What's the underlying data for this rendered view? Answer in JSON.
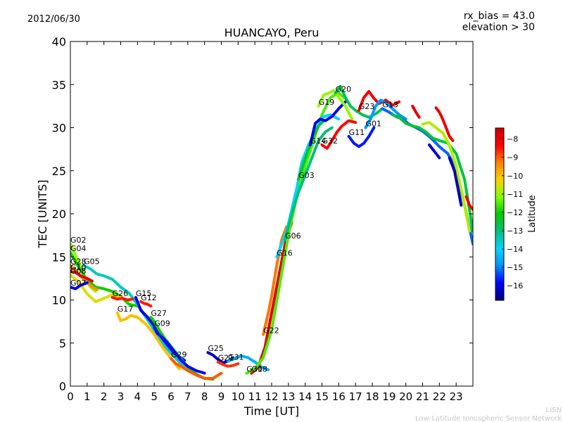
{
  "header": {
    "date": "2012/06/30",
    "bias_line": "rx_bias = 43.0",
    "elev_line": "elevation > 30"
  },
  "footer": {
    "org_short": "LISN",
    "org_long": "Low-Latitude Ionospheric Sensor Network"
  },
  "colorbar": {
    "label": "Latitude",
    "range": [
      -16.8,
      -7.4
    ],
    "ticks": [
      -8,
      -9,
      -10,
      -11,
      -12,
      -13,
      -14,
      -15,
      -16
    ],
    "colors": [
      "#00007f",
      "#0000ff",
      "#0090ff",
      "#00d4ff",
      "#00c080",
      "#00c800",
      "#7fff00",
      "#ffd000",
      "#ff8000",
      "#ff0000",
      "#c80000"
    ]
  },
  "chart_data": {
    "type": "line",
    "title": "HUANCAYO, Peru",
    "xlabel": "Time [UT]",
    "ylabel": "TEC [UNITS]",
    "xlim": [
      0,
      24
    ],
    "ylim": [
      0,
      40
    ],
    "xticks": [
      0,
      1,
      2,
      3,
      4,
      5,
      6,
      7,
      8,
      9,
      10,
      11,
      12,
      13,
      14,
      15,
      16,
      17,
      18,
      19,
      20,
      21,
      22,
      23
    ],
    "yticks": [
      0,
      5,
      10,
      15,
      20,
      25,
      30,
      35,
      40
    ],
    "grid": false,
    "series": [
      {
        "name": "G02",
        "lat": -11.0,
        "x": [
          0,
          0.3,
          0.6,
          0.9,
          1.2,
          1.5
        ],
        "y": [
          16.5,
          15.2,
          14.0,
          12.5,
          11.5,
          11.0
        ]
      },
      {
        "name": "G04",
        "lat": -12.0,
        "x": [
          0,
          0.5,
          1.0,
          1.5,
          2.0,
          2.5,
          3.0,
          3.5,
          4.0
        ],
        "y": [
          15.5,
          13.8,
          12.3,
          11.5,
          11.3,
          11.0,
          10.4,
          9.5,
          9.3
        ]
      },
      {
        "name": "G28",
        "lat": -9.5,
        "x": [
          0,
          0.3,
          0.6,
          1.0,
          1.3,
          1.6
        ],
        "y": [
          14.0,
          13.5,
          12.8,
          12.0,
          11.5,
          11.2
        ]
      },
      {
        "name": "G05",
        "lat": -13.5,
        "x": [
          0.8,
          1.2,
          1.6,
          2.0,
          2.5,
          3.0,
          3.5,
          4.0,
          4.5,
          5.0,
          5.5,
          6.0,
          6.5,
          7.0
        ],
        "y": [
          14.0,
          13.6,
          13.0,
          12.8,
          12.4,
          11.5,
          10.8,
          9.5,
          8.0,
          6.5,
          5.0,
          3.8,
          2.8,
          2.2
        ]
      },
      {
        "name": "G10",
        "lat": -8.0,
        "x": [
          0,
          0.3,
          0.6,
          1.0,
          1.3
        ],
        "y": [
          13.3,
          13.2,
          12.8,
          12.5,
          12.2
        ]
      },
      {
        "name": "G08",
        "lat": -10.5,
        "x": [
          0,
          0.5,
          1.0,
          1.5,
          2.0,
          2.5,
          3.0,
          3.5
        ],
        "y": [
          12.9,
          12.1,
          10.7,
          9.8,
          10.2,
          10.6,
          10.3,
          9.9
        ]
      },
      {
        "name": "G07",
        "lat": -16.0,
        "x": [
          0,
          0.3,
          0.6,
          1.0
        ],
        "y": [
          11.5,
          11.3,
          11.7,
          12.0
        ]
      },
      {
        "name": "G26",
        "lat": -8.5,
        "x": [
          2.5,
          2.8,
          3.1,
          3.4,
          3.7
        ],
        "y": [
          10.3,
          10.1,
          10.2,
          10.0,
          10.1
        ]
      },
      {
        "name": "G17",
        "lat": -10.0,
        "x": [
          2.8,
          3.0,
          3.3,
          3.6,
          4.0,
          4.5,
          5.0,
          5.5,
          6.0,
          6.5
        ],
        "y": [
          8.5,
          7.6,
          7.8,
          8.2,
          8.0,
          7.2,
          6.0,
          4.5,
          3.2,
          2.0
        ]
      },
      {
        "name": "G15",
        "lat": -16.0,
        "x": [
          3.9,
          4.2,
          4.6,
          5.0,
          5.3,
          5.7,
          6.2,
          6.8
        ],
        "y": [
          10.3,
          8.8,
          8.0,
          7.0,
          6.0,
          5.0,
          3.8,
          3.0
        ]
      },
      {
        "name": "G12",
        "lat": -8.5,
        "x": [
          4.2,
          4.4,
          4.6,
          4.8
        ],
        "y": [
          9.8,
          9.6,
          9.5,
          9.3
        ]
      },
      {
        "name": "G27",
        "lat": -12.0,
        "x": [
          4.8,
          5.0,
          5.3,
          5.6,
          6.0,
          6.5,
          7.0,
          7.5,
          8.0,
          8.5
        ],
        "y": [
          8.0,
          7.5,
          6.5,
          5.6,
          4.6,
          3.4,
          2.2,
          1.4,
          0.9,
          0.8
        ]
      },
      {
        "name": "G09",
        "lat": -15.8,
        "x": [
          5.0,
          5.2,
          5.4,
          5.8,
          6.2,
          6.6,
          7.0,
          7.5,
          8.0
        ],
        "y": [
          6.8,
          6.1,
          5.8,
          5.0,
          4.0,
          3.0,
          2.3,
          1.8,
          1.5
        ]
      },
      {
        "name": "G29",
        "lat": -9.0,
        "x": [
          6.0,
          6.3,
          6.6,
          7.0,
          7.5,
          8.0,
          8.5,
          9.0
        ],
        "y": [
          3.2,
          2.6,
          2.3,
          1.8,
          1.3,
          0.9,
          0.9,
          1.5
        ]
      },
      {
        "name": "G25",
        "lat": -16.3,
        "x": [
          8.2,
          8.5,
          8.8,
          9.1,
          9.4,
          9.7
        ],
        "y": [
          3.9,
          3.6,
          3.1,
          2.7,
          2.9,
          3.3
        ]
      },
      {
        "name": "G21",
        "lat": -8.7,
        "x": [
          8.8,
          9.1,
          9.4,
          9.7,
          10.0
        ],
        "y": [
          2.8,
          2.5,
          2.3,
          2.4,
          2.6
        ]
      },
      {
        "name": "G31",
        "lat": -14.5,
        "x": [
          9.4,
          9.8,
          10.2,
          10.6,
          11.0,
          11.4,
          11.8
        ],
        "y": [
          2.9,
          3.2,
          3.5,
          3.3,
          2.8,
          2.2,
          1.9
        ]
      },
      {
        "name": "G18",
        "lat": -7.8,
        "x": [
          10.8,
          11.2,
          11.6,
          12.0,
          12.4,
          12.8,
          13.2
        ],
        "y": [
          1.5,
          2.2,
          4.5,
          8.5,
          12.5,
          16.5,
          19.0
        ]
      },
      {
        "name": "G30",
        "lat": -11.5,
        "x": [
          10.5,
          11.0,
          11.5,
          12.0,
          12.5,
          13.0,
          13.5,
          14.0,
          14.5,
          15.0,
          15.5,
          16.0,
          16.5
        ],
        "y": [
          1.5,
          2.0,
          3.3,
          6.5,
          12.0,
          17.5,
          22.0,
          25.5,
          28.5,
          31.5,
          33.5,
          34.0,
          33.2
        ]
      },
      {
        "name": "G22",
        "lat": -9.2,
        "x": [
          11.5,
          11.8,
          12.0,
          12.3,
          12.6,
          12.9
        ],
        "y": [
          6.0,
          8.5,
          10.5,
          14.0,
          17.0,
          18.5
        ]
      },
      {
        "name": "G16",
        "lat": -14.0,
        "x": [
          12.3,
          12.6,
          12.9,
          13.2,
          13.5,
          13.8,
          14.2,
          14.6,
          15.0,
          15.5,
          16.0
        ],
        "y": [
          15.0,
          16.5,
          18.0,
          20.5,
          23.0,
          26.0,
          28.0,
          29.5,
          31.2,
          31.5,
          31.0
        ]
      },
      {
        "name": "G06",
        "lat": -13.0,
        "x": [
          12.8,
          13.2,
          13.6,
          14.0,
          14.4,
          14.8,
          15.2,
          15.6
        ],
        "y": [
          17.0,
          20.0,
          22.5,
          24.5,
          26.5,
          28.5,
          29.5,
          30.0
        ]
      },
      {
        "name": "G03",
        "lat": -12.5,
        "x": [
          13.6,
          13.9,
          14.2,
          14.5,
          14.8,
          15.1
        ],
        "y": [
          24.0,
          25.8,
          27.5,
          29.0,
          30.2,
          30.8
        ]
      },
      {
        "name": "G14",
        "lat": -16.0,
        "x": [
          14.3,
          14.6,
          14.9,
          15.2,
          15.6,
          16.0,
          16.4
        ],
        "y": [
          28.0,
          30.5,
          31.0,
          30.8,
          31.3,
          32.2,
          33.0
        ]
      },
      {
        "name": "G19",
        "lat": -11.0,
        "x": [
          14.8,
          15.1,
          15.4,
          15.7,
          16.0,
          16.4,
          16.8
        ],
        "y": [
          32.5,
          33.8,
          34.0,
          34.3,
          33.5,
          32.5,
          31.0
        ]
      },
      {
        "name": "G32",
        "lat": -8.3,
        "x": [
          15.0,
          15.3,
          15.6,
          15.9,
          16.2,
          16.6,
          17.0
        ],
        "y": [
          28.0,
          27.6,
          28.5,
          29.5,
          30.2,
          30.8,
          30.6
        ]
      },
      {
        "name": "G20",
        "lat": -12.7,
        "x": [
          15.8,
          16.1,
          16.4,
          16.7,
          17.0,
          17.4,
          17.8,
          18.2,
          18.6
        ],
        "y": [
          34.0,
          34.8,
          33.5,
          32.5,
          32.0,
          31.5,
          31.2,
          31.6,
          32.2
        ]
      },
      {
        "name": "G11",
        "lat": -15.7,
        "x": [
          16.6,
          16.9,
          17.2,
          17.5,
          17.8,
          18.1
        ],
        "y": [
          29.0,
          28.2,
          27.8,
          28.2,
          29.0,
          30.0
        ]
      },
      {
        "name": "G23",
        "lat": -8.1,
        "x": [
          17.2,
          17.5,
          17.8,
          18.1,
          18.4,
          18.8,
          19.2,
          19.6
        ],
        "y": [
          32.0,
          33.5,
          34.2,
          33.4,
          32.8,
          33.2,
          32.6,
          33.0
        ]
      },
      {
        "name": "G01",
        "lat": -14.8,
        "x": [
          17.6,
          17.9,
          18.2,
          18.5,
          18.8,
          19.2,
          19.6,
          20.0
        ],
        "y": [
          30.0,
          31.0,
          32.5,
          33.2,
          32.9,
          32.2,
          31.5,
          31.0
        ]
      },
      {
        "name": "G13",
        "lat": -15.2,
        "x": [
          18.6,
          19.0,
          19.4,
          19.8,
          20.2,
          20.6,
          21.0,
          21.5,
          22.0,
          22.5,
          23.0,
          23.5,
          24.0
        ],
        "y": [
          32.2,
          31.8,
          31.3,
          31.0,
          30.4,
          30.0,
          29.6,
          28.8,
          27.8,
          27.0,
          25.2,
          21.0,
          16.5
        ]
      },
      {
        "name": "",
        "lat": -12.5,
        "x": [
          19.2,
          19.6,
          20.0,
          20.4,
          20.8,
          21.2,
          21.6,
          22.0,
          22.5,
          23.0,
          23.5,
          24.0
        ],
        "y": [
          31.5,
          31.2,
          30.5,
          30.2,
          30.0,
          29.5,
          28.8,
          28.5,
          28.2,
          27.0,
          24.0,
          18.0
        ]
      },
      {
        "name": "",
        "lat": -10.8,
        "x": [
          21.0,
          21.4,
          21.8,
          22.2,
          22.6,
          23.0,
          23.4,
          23.8
        ],
        "y": [
          30.4,
          30.6,
          30.0,
          29.4,
          28.0,
          25.5,
          22.0,
          18.0
        ]
      },
      {
        "name": "",
        "lat": -8.0,
        "x": [
          21.8,
          22.0,
          22.2,
          22.4,
          22.6,
          22.8
        ],
        "y": [
          32.3,
          31.8,
          31.0,
          30.0,
          29.0,
          28.5
        ]
      },
      {
        "name": "",
        "lat": -7.9,
        "x": [
          20.4,
          20.6,
          20.8
        ],
        "y": [
          32.5,
          31.8,
          31.2
        ]
      },
      {
        "name": "",
        "lat": -16.2,
        "x": [
          21.4,
          21.6,
          21.8,
          22.0
        ],
        "y": [
          28.0,
          27.5,
          27.0,
          26.5
        ]
      },
      {
        "name": "",
        "lat": -16.4,
        "x": [
          22.6,
          22.9,
          23.1,
          23.3
        ],
        "y": [
          26.5,
          25.0,
          23.0,
          21.0
        ]
      },
      {
        "name": "",
        "lat": -8.1,
        "x": [
          23.6,
          23.8,
          24.0
        ],
        "y": [
          22.0,
          21.0,
          20.5
        ]
      }
    ]
  }
}
